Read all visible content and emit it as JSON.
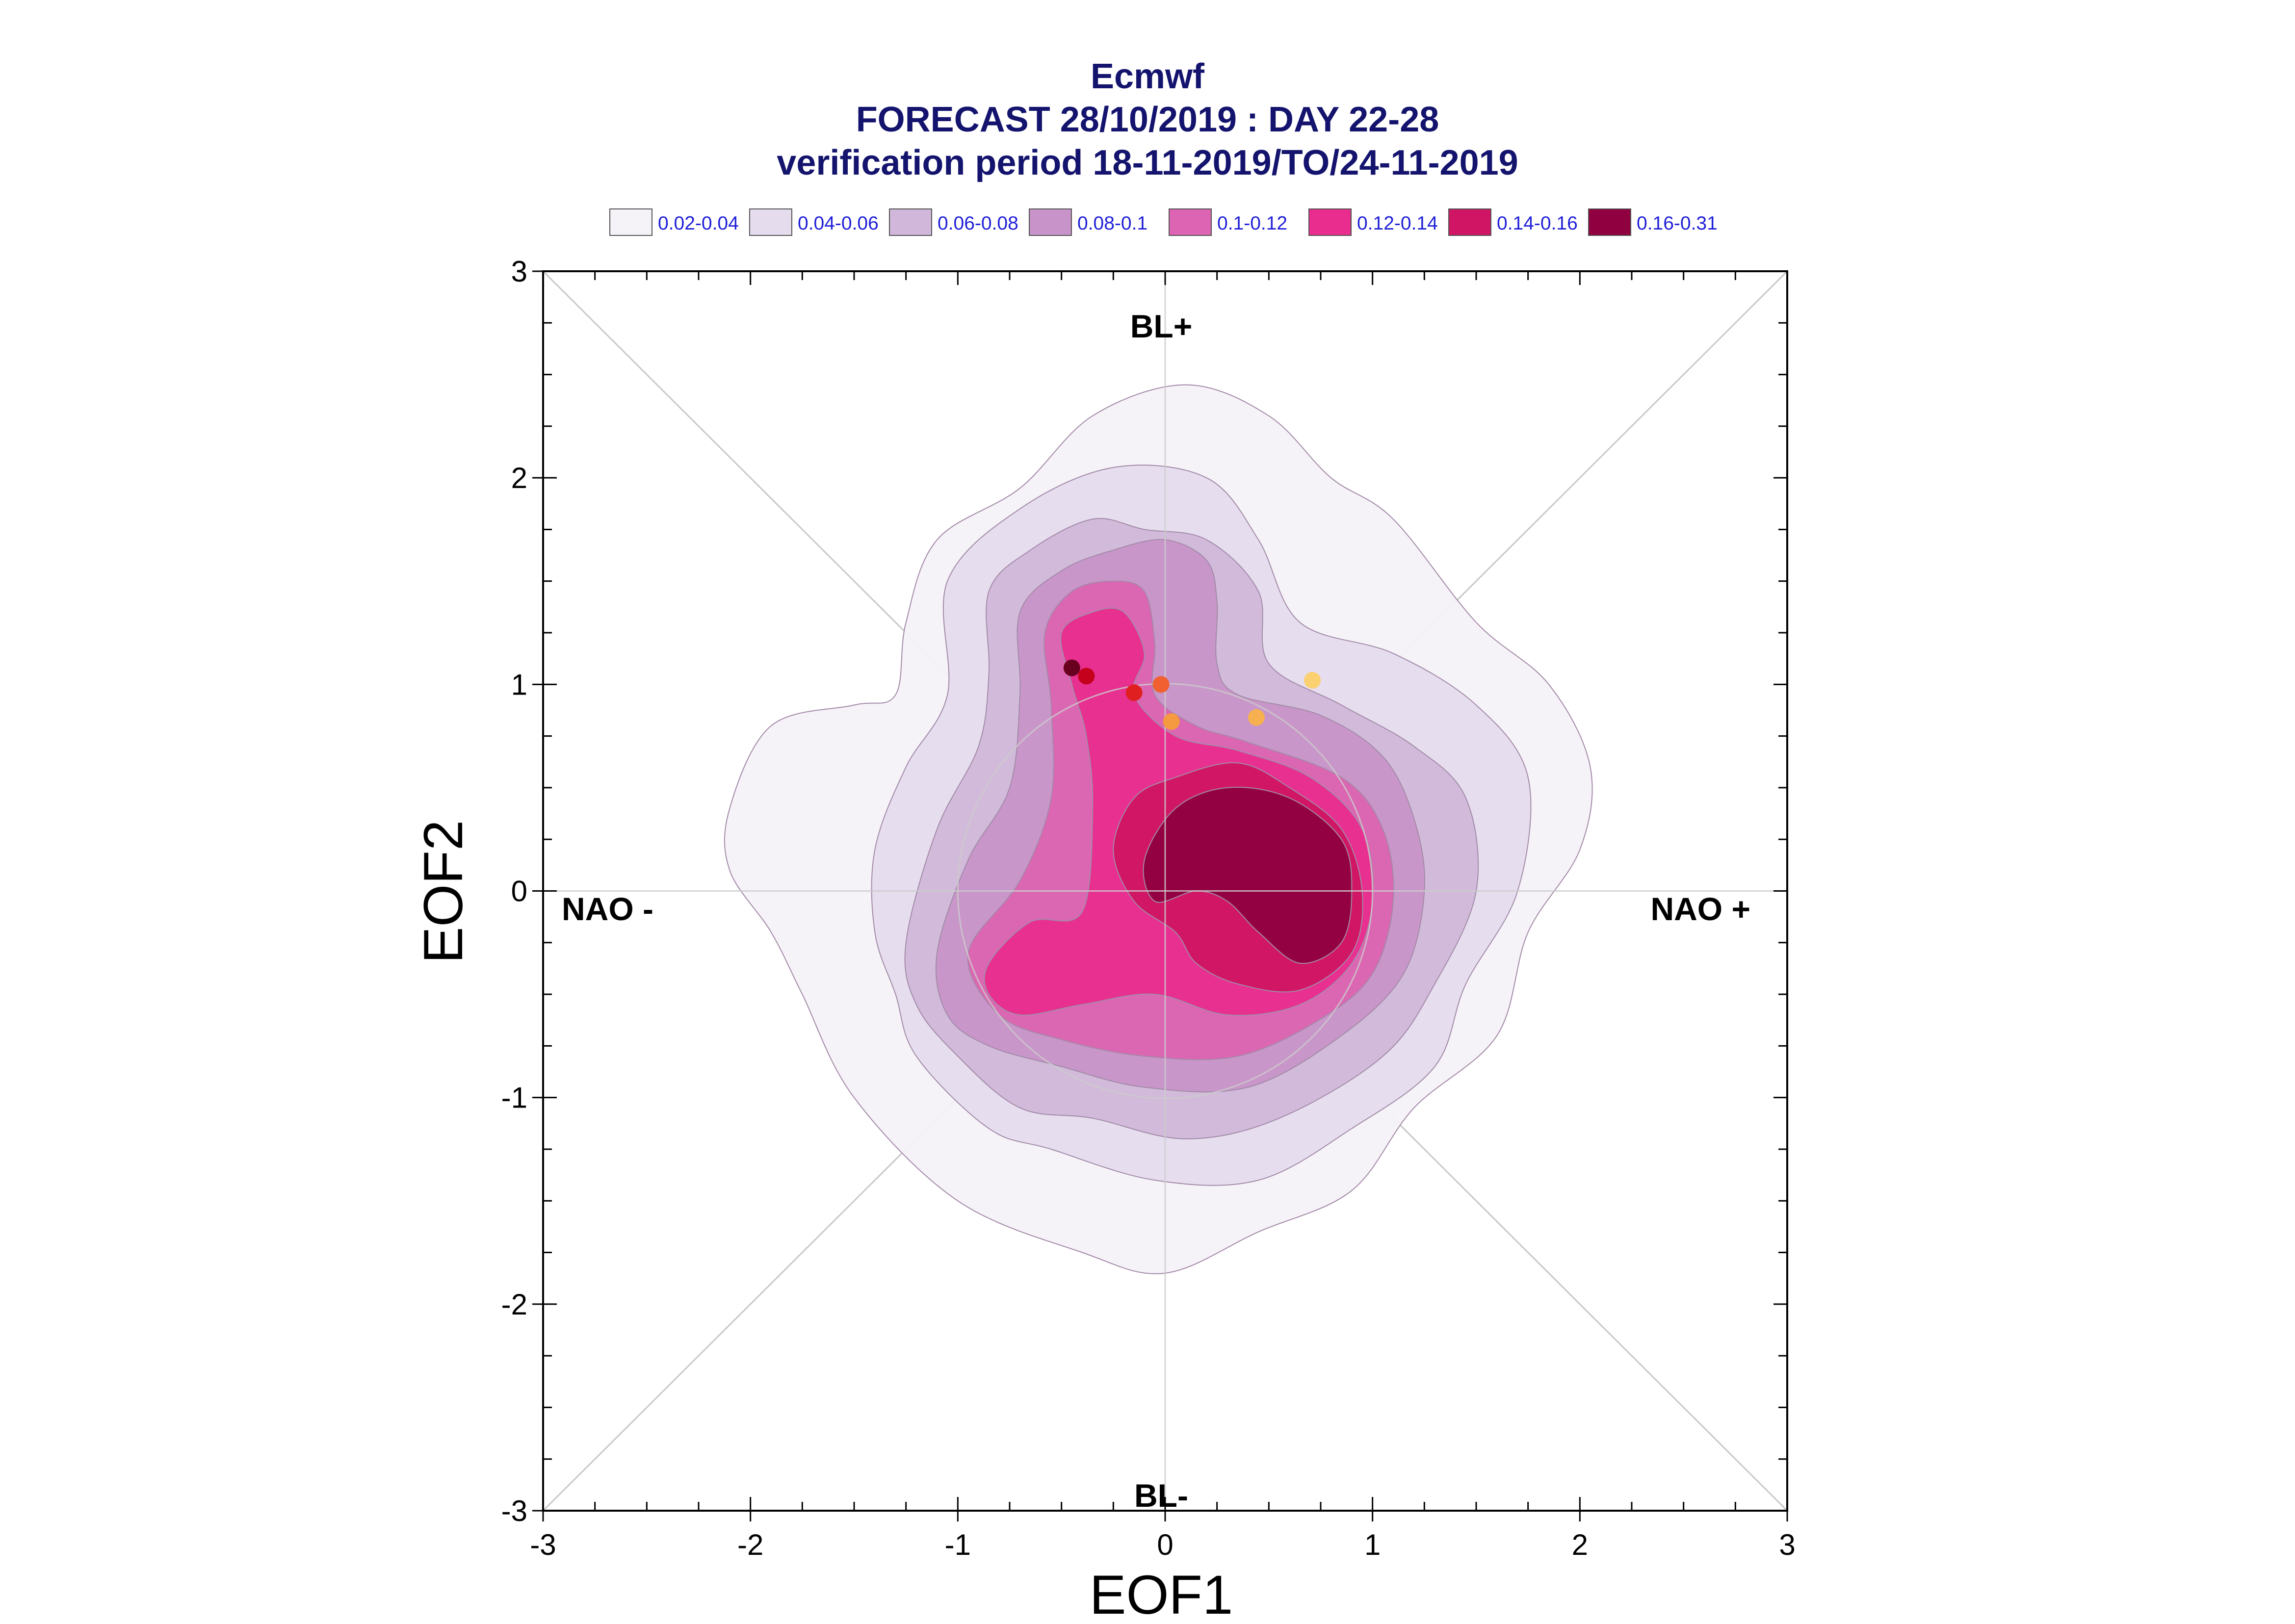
{
  "title_lines": [
    "Ecmwf",
    "FORECAST 28/10/2019 : DAY 22-28",
    "verification period 18-11-2019/TO/24-11-2019"
  ],
  "legend": [
    {
      "label": "0.02-0.04",
      "color": "#f5f2f8"
    },
    {
      "label": "0.04-0.06",
      "color": "#e5dcee"
    },
    {
      "label": "0.06-0.08",
      "color": "#d1b7d9"
    },
    {
      "label": "0.08-0.1",
      "color": "#c893c8"
    },
    {
      "label": "0.1-0.12",
      "color": "#dc64b2"
    },
    {
      "label": "0.12-0.14",
      "color": "#e82d8e"
    },
    {
      "label": "0.14-0.16",
      "color": "#cf1563"
    },
    {
      "label": "0.16-0.31",
      "color": "#900040"
    }
  ],
  "region_labels": {
    "top": "BL+",
    "bottom": "BL-",
    "left": "NAO -",
    "right": "NAO +"
  },
  "chart_data": {
    "type": "contour",
    "xlabel": "EOF1",
    "ylabel": "EOF2",
    "xlim": [
      -3,
      3
    ],
    "ylim": [
      -3,
      3
    ],
    "x_ticks": [
      "-3",
      "-2",
      "-1",
      "0",
      "1",
      "2",
      "3"
    ],
    "y_ticks": [
      "-3",
      "-2",
      "-1",
      "0",
      "1",
      "2",
      "3"
    ],
    "levels": [
      {
        "range": "0.02-0.04",
        "color": "#f5f2f8",
        "outline": [
          [
            -2.1,
            0.4
          ],
          [
            -1.9,
            0.8
          ],
          [
            -1.5,
            0.9
          ],
          [
            -1.3,
            0.95
          ],
          [
            -1.25,
            1.3
          ],
          [
            -1.1,
            1.7
          ],
          [
            -0.7,
            1.95
          ],
          [
            -0.35,
            2.3
          ],
          [
            0.1,
            2.45
          ],
          [
            0.5,
            2.3
          ],
          [
            0.8,
            2.0
          ],
          [
            1.1,
            1.8
          ],
          [
            1.5,
            1.3
          ],
          [
            1.85,
            1.0
          ],
          [
            2.05,
            0.6
          ],
          [
            2.0,
            0.2
          ],
          [
            1.75,
            -0.2
          ],
          [
            1.6,
            -0.7
          ],
          [
            1.2,
            -1.05
          ],
          [
            0.9,
            -1.45
          ],
          [
            0.45,
            -1.65
          ],
          [
            0.0,
            -1.85
          ],
          [
            -0.4,
            -1.75
          ],
          [
            -1.0,
            -1.5
          ],
          [
            -1.5,
            -1.0
          ],
          [
            -1.75,
            -0.5
          ],
          [
            -1.9,
            -0.2
          ],
          [
            -2.1,
            0.1
          ]
        ]
      },
      {
        "range": "0.04-0.06",
        "color": "#e5dcee",
        "outline": [
          [
            -1.4,
            -0.2
          ],
          [
            -1.4,
            0.2
          ],
          [
            -1.25,
            0.6
          ],
          [
            -1.05,
            0.95
          ],
          [
            -1.05,
            1.5
          ],
          [
            -0.7,
            1.85
          ],
          [
            -0.25,
            2.05
          ],
          [
            0.2,
            2.0
          ],
          [
            0.45,
            1.7
          ],
          [
            0.65,
            1.3
          ],
          [
            1.1,
            1.15
          ],
          [
            1.5,
            0.9
          ],
          [
            1.75,
            0.55
          ],
          [
            1.7,
            0.0
          ],
          [
            1.45,
            -0.45
          ],
          [
            1.3,
            -0.85
          ],
          [
            0.9,
            -1.15
          ],
          [
            0.45,
            -1.4
          ],
          [
            -0.05,
            -1.4
          ],
          [
            -0.55,
            -1.25
          ],
          [
            -0.85,
            -1.15
          ],
          [
            -1.2,
            -0.8
          ],
          [
            -1.3,
            -0.5
          ]
        ]
      },
      {
        "range": "0.06-0.08",
        "color": "#d1b7d9",
        "outline": [
          [
            -1.25,
            -0.25
          ],
          [
            -1.1,
            0.3
          ],
          [
            -0.9,
            0.7
          ],
          [
            -0.85,
            1.05
          ],
          [
            -0.85,
            1.45
          ],
          [
            -0.65,
            1.65
          ],
          [
            -0.35,
            1.8
          ],
          [
            -0.1,
            1.75
          ],
          [
            0.2,
            1.7
          ],
          [
            0.45,
            1.45
          ],
          [
            0.5,
            1.1
          ],
          [
            0.85,
            0.9
          ],
          [
            1.2,
            0.7
          ],
          [
            1.45,
            0.45
          ],
          [
            1.5,
            0.0
          ],
          [
            1.3,
            -0.45
          ],
          [
            1.05,
            -0.8
          ],
          [
            0.55,
            -1.1
          ],
          [
            0.1,
            -1.2
          ],
          [
            -0.35,
            -1.1
          ],
          [
            -0.7,
            -1.05
          ],
          [
            -1.0,
            -0.8
          ],
          [
            -1.2,
            -0.55
          ]
        ]
      },
      {
        "range": "0.08-0.1",
        "color": "#c893c8",
        "outline": [
          [
            -1.1,
            -0.3
          ],
          [
            -0.95,
            0.15
          ],
          [
            -0.75,
            0.5
          ],
          [
            -0.7,
            0.95
          ],
          [
            -0.7,
            1.35
          ],
          [
            -0.5,
            1.55
          ],
          [
            -0.25,
            1.65
          ],
          [
            0.0,
            1.7
          ],
          [
            0.2,
            1.6
          ],
          [
            0.25,
            1.4
          ],
          [
            0.25,
            1.1
          ],
          [
            0.35,
            0.95
          ],
          [
            0.75,
            0.85
          ],
          [
            1.05,
            0.65
          ],
          [
            1.2,
            0.35
          ],
          [
            1.25,
            0.0
          ],
          [
            1.15,
            -0.4
          ],
          [
            0.85,
            -0.7
          ],
          [
            0.4,
            -0.95
          ],
          [
            -0.1,
            -0.95
          ],
          [
            -0.5,
            -0.85
          ],
          [
            -0.85,
            -0.75
          ],
          [
            -1.05,
            -0.6
          ]
        ]
      },
      {
        "range": "0.1-0.12",
        "color": "#dc64b2",
        "outline": [
          [
            -0.95,
            -0.3
          ],
          [
            -0.7,
            0.05
          ],
          [
            -0.55,
            0.45
          ],
          [
            -0.55,
            0.9
          ],
          [
            -0.58,
            1.25
          ],
          [
            -0.45,
            1.45
          ],
          [
            -0.25,
            1.5
          ],
          [
            -0.1,
            1.45
          ],
          [
            -0.05,
            1.2
          ],
          [
            -0.05,
            0.95
          ],
          [
            0.15,
            0.8
          ],
          [
            0.4,
            0.72
          ],
          [
            0.85,
            0.55
          ],
          [
            1.05,
            0.3
          ],
          [
            1.1,
            -0.05
          ],
          [
            1.0,
            -0.4
          ],
          [
            0.75,
            -0.62
          ],
          [
            0.35,
            -0.8
          ],
          [
            -0.1,
            -0.8
          ],
          [
            -0.5,
            -0.72
          ],
          [
            -0.8,
            -0.6
          ]
        ]
      },
      {
        "range": "0.12-0.14",
        "color": "#e82d8e",
        "outline": [
          [
            -0.85,
            -0.35
          ],
          [
            -0.65,
            -0.15
          ],
          [
            -0.4,
            -0.1
          ],
          [
            -0.35,
            0.4
          ],
          [
            -0.38,
            0.75
          ],
          [
            -0.45,
            1.0
          ],
          [
            -0.5,
            1.25
          ],
          [
            -0.35,
            1.35
          ],
          [
            -0.2,
            1.35
          ],
          [
            -0.1,
            1.15
          ],
          [
            -0.15,
            0.95
          ],
          [
            0.05,
            0.75
          ],
          [
            0.35,
            0.68
          ],
          [
            0.7,
            0.55
          ],
          [
            0.95,
            0.3
          ],
          [
            1.0,
            -0.05
          ],
          [
            0.9,
            -0.35
          ],
          [
            0.65,
            -0.55
          ],
          [
            0.3,
            -0.6
          ],
          [
            -0.05,
            -0.5
          ],
          [
            -0.4,
            -0.55
          ],
          [
            -0.7,
            -0.6
          ],
          [
            -0.85,
            -0.5
          ]
        ]
      },
      {
        "range": "0.14-0.16",
        "color": "#cf1563",
        "outline": [
          [
            -0.25,
            0.2
          ],
          [
            -0.15,
            0.45
          ],
          [
            0.05,
            0.55
          ],
          [
            0.35,
            0.62
          ],
          [
            0.6,
            0.5
          ],
          [
            0.85,
            0.3
          ],
          [
            0.95,
            0.0
          ],
          [
            0.9,
            -0.3
          ],
          [
            0.65,
            -0.48
          ],
          [
            0.35,
            -0.45
          ],
          [
            0.15,
            -0.35
          ],
          [
            0.05,
            -0.2
          ],
          [
            -0.15,
            -0.05
          ]
        ]
      },
      {
        "range": "0.16-0.31",
        "color": "#900040",
        "outline": [
          [
            -0.1,
            0.15
          ],
          [
            0.05,
            0.4
          ],
          [
            0.3,
            0.5
          ],
          [
            0.6,
            0.45
          ],
          [
            0.85,
            0.25
          ],
          [
            0.9,
            0.0
          ],
          [
            0.85,
            -0.25
          ],
          [
            0.65,
            -0.35
          ],
          [
            0.45,
            -0.2
          ],
          [
            0.3,
            -0.05
          ],
          [
            0.15,
            0.0
          ],
          [
            -0.05,
            -0.05
          ]
        ]
      }
    ],
    "trajectory_points": [
      {
        "x": -0.45,
        "y": 1.08,
        "color": "#6a0020"
      },
      {
        "x": -0.38,
        "y": 1.04,
        "color": "#c4001c"
      },
      {
        "x": -0.15,
        "y": 0.96,
        "color": "#e02020"
      },
      {
        "x": -0.02,
        "y": 1.0,
        "color": "#f06030"
      },
      {
        "x": 0.03,
        "y": 0.82,
        "color": "#f59a40"
      },
      {
        "x": 0.44,
        "y": 0.84,
        "color": "#f6b050"
      },
      {
        "x": 0.71,
        "y": 1.02,
        "color": "#fbd070"
      }
    ]
  }
}
